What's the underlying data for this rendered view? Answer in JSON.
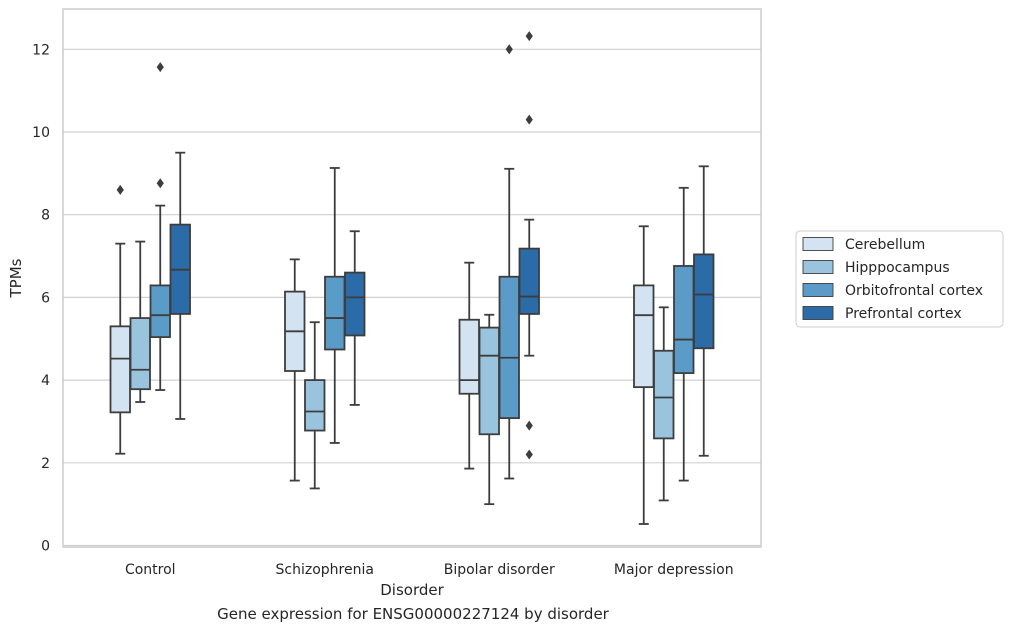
{
  "caption": "Gene expression for ENSG00000227124 by disorder",
  "chart_data": {
    "type": "box",
    "title": "",
    "xlabel": "Disorder",
    "ylabel": "TPMs",
    "ylim": [
      0,
      12.9
    ],
    "yticks": [
      0,
      2,
      4,
      6,
      8,
      10,
      12
    ],
    "grid": "horizontal",
    "legend_position": "right",
    "categories": [
      "Control",
      "Schizophrenia",
      "Bipolar disorder",
      "Major depression"
    ],
    "series": [
      {
        "name": "Cerebellum",
        "color": "#d4e3f2",
        "boxes": [
          {
            "whisker_low": 2.22,
            "q1": 3.22,
            "median": 4.52,
            "q3": 5.3,
            "whisker_high": 7.3,
            "outliers": [
              8.6
            ]
          },
          {
            "whisker_low": 1.57,
            "q1": 4.22,
            "median": 5.18,
            "q3": 6.14,
            "whisker_high": 6.92,
            "outliers": []
          },
          {
            "whisker_low": 1.86,
            "q1": 3.67,
            "median": 4.0,
            "q3": 5.46,
            "whisker_high": 6.84,
            "outliers": []
          },
          {
            "whisker_low": 0.52,
            "q1": 3.83,
            "median": 5.57,
            "q3": 6.29,
            "whisker_high": 7.72,
            "outliers": []
          }
        ]
      },
      {
        "name": "Hipppocampus",
        "color": "#9ac3dd",
        "boxes": [
          {
            "whisker_low": 3.47,
            "q1": 3.78,
            "median": 4.25,
            "q3": 5.5,
            "whisker_high": 7.35,
            "outliers": []
          },
          {
            "whisker_low": 1.38,
            "q1": 2.78,
            "median": 3.24,
            "q3": 4.0,
            "whisker_high": 5.4,
            "outliers": []
          },
          {
            "whisker_low": 1.0,
            "q1": 2.69,
            "median": 4.59,
            "q3": 5.27,
            "whisker_high": 5.58,
            "outliers": []
          },
          {
            "whisker_low": 1.09,
            "q1": 2.59,
            "median": 3.58,
            "q3": 4.71,
            "whisker_high": 5.76,
            "outliers": []
          }
        ]
      },
      {
        "name": "Orbitofrontal cortex",
        "color": "#5b9bc8",
        "boxes": [
          {
            "whisker_low": 3.76,
            "q1": 5.04,
            "median": 5.57,
            "q3": 6.29,
            "whisker_high": 8.22,
            "outliers": [
              8.76,
              11.57
            ]
          },
          {
            "whisker_low": 2.48,
            "q1": 4.74,
            "median": 5.5,
            "q3": 6.5,
            "whisker_high": 9.13,
            "outliers": []
          },
          {
            "whisker_low": 1.62,
            "q1": 3.08,
            "median": 4.54,
            "q3": 6.5,
            "whisker_high": 9.11,
            "outliers": [
              12.0
            ]
          },
          {
            "whisker_low": 1.57,
            "q1": 4.17,
            "median": 4.98,
            "q3": 6.76,
            "whisker_high": 8.65,
            "outliers": []
          }
        ]
      },
      {
        "name": "Prefrontal cortex",
        "color": "#2b6ca8",
        "boxes": [
          {
            "whisker_low": 3.06,
            "q1": 5.6,
            "median": 6.67,
            "q3": 7.76,
            "whisker_high": 9.5,
            "outliers": []
          },
          {
            "whisker_low": 3.4,
            "q1": 5.08,
            "median": 6.0,
            "q3": 6.6,
            "whisker_high": 7.6,
            "outliers": []
          },
          {
            "whisker_low": 4.59,
            "q1": 5.6,
            "median": 6.02,
            "q3": 7.18,
            "whisker_high": 7.88,
            "outliers": [
              2.2,
              2.9,
              10.3,
              12.32
            ]
          },
          {
            "whisker_low": 2.17,
            "q1": 4.77,
            "median": 6.07,
            "q3": 7.04,
            "whisker_high": 9.17,
            "outliers": []
          }
        ]
      }
    ]
  }
}
